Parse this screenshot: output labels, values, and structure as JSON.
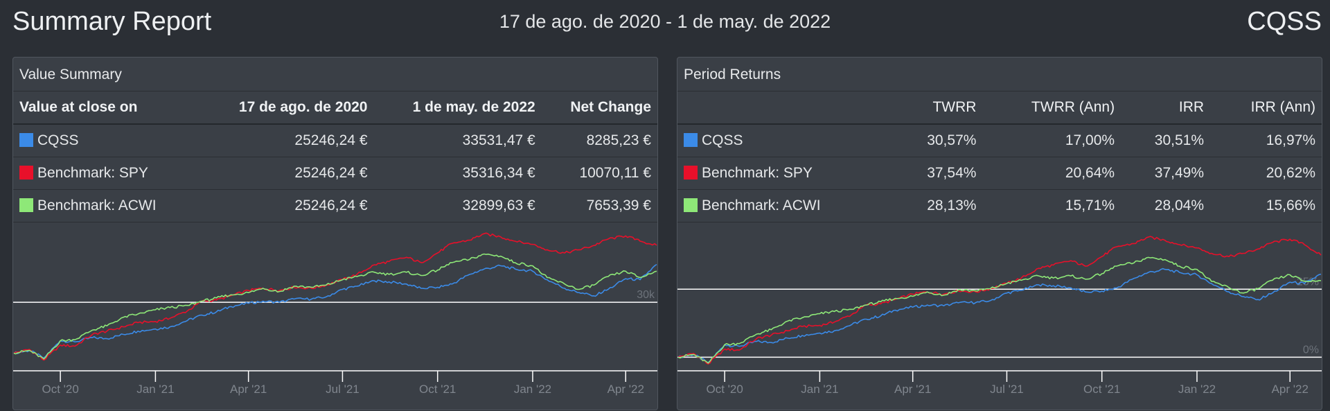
{
  "header": {
    "title": "Summary Report",
    "date_range": "17 de ago. de 2020 - 1 de may. de 2022",
    "portfolio": "CQSS"
  },
  "colors": {
    "cqss": "#3b8be8",
    "spy": "#e8102a",
    "acwi": "#8ee878"
  },
  "value_summary": {
    "title": "Value Summary",
    "columns": [
      "Value at close on",
      "17 de ago. de 2020",
      "1 de may. de 2022",
      "Net Change"
    ],
    "rows": [
      {
        "label": "CQSS",
        "start": "25246,24 €",
        "end": "33531,47 €",
        "change": "8285,23 €"
      },
      {
        "label": "Benchmark: SPY",
        "start": "25246,24 €",
        "end": "35316,34 €",
        "change": "10070,11 €"
      },
      {
        "label": "Benchmark: ACWI",
        "start": "25246,24 €",
        "end": "32899,63 €",
        "change": "7653,39 €"
      }
    ]
  },
  "period_returns": {
    "title": "Period Returns",
    "columns": [
      "",
      "TWRR",
      "TWRR (Ann)",
      "IRR",
      "IRR (Ann)"
    ],
    "rows": [
      {
        "label": "CQSS",
        "twrr": "30,57%",
        "twrr_ann": "17,00%",
        "irr": "30,51%",
        "irr_ann": "16,97%"
      },
      {
        "label": "Benchmark: SPY",
        "twrr": "37,54%",
        "twrr_ann": "20,64%",
        "irr": "37,49%",
        "irr_ann": "20,62%"
      },
      {
        "label": "Benchmark: ACWI",
        "twrr": "28,13%",
        "twrr_ann": "15,71%",
        "irr": "28,04%",
        "irr_ann": "15,66%"
      }
    ]
  },
  "chart_data": [
    {
      "type": "line",
      "xlabels": [
        "Oct '20",
        "Jan '21",
        "Apr '21",
        "Jul '21",
        "Oct '21",
        "Jan '22",
        "Apr '22"
      ],
      "y_tick_label": "30k",
      "y_tick_value": 30000,
      "ylim": [
        23600,
        36800
      ],
      "x": [
        "2020-08-17",
        "2020-09-01",
        "2020-09-15",
        "2020-10-01",
        "2020-10-15",
        "2020-11-01",
        "2020-11-15",
        "2020-12-01",
        "2020-12-15",
        "2021-01-01",
        "2021-01-15",
        "2021-02-01",
        "2021-02-15",
        "2021-03-01",
        "2021-03-15",
        "2021-04-01",
        "2021-04-15",
        "2021-05-01",
        "2021-05-15",
        "2021-06-01",
        "2021-06-15",
        "2021-07-01",
        "2021-07-15",
        "2021-08-01",
        "2021-08-15",
        "2021-09-01",
        "2021-09-15",
        "2021-10-01",
        "2021-10-15",
        "2021-11-01",
        "2021-11-15",
        "2021-12-01",
        "2021-12-15",
        "2022-01-01",
        "2022-01-15",
        "2022-02-01",
        "2022-02-15",
        "2022-03-01",
        "2022-03-15",
        "2022-04-01",
        "2022-04-15",
        "2022-05-01"
      ],
      "series": [
        {
          "name": "CQSS",
          "values": [
            25246,
            25500,
            24800,
            26400,
            26300,
            26700,
            26600,
            27000,
            27300,
            27500,
            27700,
            28300,
            28800,
            29100,
            29600,
            29900,
            30100,
            30000,
            30300,
            30300,
            30500,
            31200,
            31500,
            32000,
            31900,
            31700,
            31300,
            31400,
            31700,
            32600,
            33100,
            33400,
            33100,
            32900,
            32100,
            31300,
            30900,
            30600,
            31200,
            32200,
            32100,
            33531
          ]
        },
        {
          "name": "Benchmark: SPY",
          "values": [
            25246,
            25600,
            24600,
            26000,
            25900,
            27000,
            27300,
            27700,
            28100,
            28200,
            28500,
            29200,
            30100,
            30200,
            30600,
            31100,
            31300,
            31100,
            31400,
            31300,
            31600,
            32100,
            32600,
            33500,
            33800,
            34200,
            33700,
            34600,
            35500,
            35800,
            36400,
            36100,
            35700,
            35400,
            34900,
            34600,
            34900,
            35300,
            35900,
            36200,
            35700,
            35316
          ]
        },
        {
          "name": "Benchmark: ACWI",
          "values": [
            25246,
            25500,
            24700,
            26400,
            26500,
            27400,
            27800,
            28600,
            28900,
            29300,
            29500,
            29700,
            30100,
            30400,
            30700,
            30900,
            31300,
            31000,
            31500,
            31400,
            31600,
            32100,
            32400,
            32800,
            32600,
            32800,
            32500,
            33000,
            33700,
            34000,
            34500,
            34300,
            33700,
            33400,
            32300,
            31700,
            31200,
            31600,
            32400,
            32900,
            32300,
            32899
          ]
        }
      ]
    },
    {
      "type": "line",
      "xlabels": [
        "Oct '20",
        "Jan '21",
        "Apr '21",
        "Jul '21",
        "Oct '21",
        "Jan '22",
        "Apr '22"
      ],
      "y_ticks": [
        {
          "label": "0%",
          "value": 0
        },
        {
          "label": "25%",
          "value": 25
        }
      ],
      "ylim": [
        -5,
        47
      ],
      "x": [
        "2020-08-17",
        "2020-09-01",
        "2020-09-15",
        "2020-10-01",
        "2020-10-15",
        "2020-11-01",
        "2020-11-15",
        "2020-12-01",
        "2020-12-15",
        "2021-01-01",
        "2021-01-15",
        "2021-02-01",
        "2021-02-15",
        "2021-03-01",
        "2021-03-15",
        "2021-04-01",
        "2021-04-15",
        "2021-05-01",
        "2021-05-15",
        "2021-06-01",
        "2021-06-15",
        "2021-07-01",
        "2021-07-15",
        "2021-08-01",
        "2021-08-15",
        "2021-09-01",
        "2021-09-15",
        "2021-10-01",
        "2021-10-15",
        "2021-11-01",
        "2021-11-15",
        "2021-12-01",
        "2021-12-15",
        "2022-01-01",
        "2022-01-15",
        "2022-02-01",
        "2022-02-15",
        "2022-03-01",
        "2022-03-15",
        "2022-04-01",
        "2022-04-15",
        "2022-05-01"
      ],
      "series": [
        {
          "name": "CQSS",
          "values": [
            0,
            1,
            -2,
            4.5,
            4,
            5.8,
            5.4,
            7,
            8,
            8.9,
            9.7,
            12,
            14,
            15.2,
            17.3,
            18.4,
            19.2,
            18.9,
            20,
            20.1,
            20.8,
            23.6,
            24.6,
            26.6,
            26.3,
            25.5,
            24,
            24.3,
            25.4,
            29,
            31.2,
            32.3,
            31.2,
            30.3,
            27.1,
            24,
            22.3,
            21.2,
            23.6,
            27.6,
            27.1,
            30.57
          ]
        },
        {
          "name": "Benchmark: SPY",
          "values": [
            0,
            1.4,
            -2.5,
            3,
            2.6,
            6.9,
            8.1,
            9.7,
            11.3,
            11.7,
            12.9,
            15.7,
            19.2,
            19.6,
            21.2,
            23.2,
            24,
            23.2,
            24.4,
            24,
            25.2,
            27.1,
            29.1,
            32.7,
            33.9,
            35.5,
            33.5,
            37,
            40.6,
            41.8,
            44.2,
            43,
            41.4,
            40.2,
            38.2,
            37,
            38.2,
            39.8,
            42.2,
            43.4,
            41.4,
            37.54
          ]
        },
        {
          "name": "Benchmark: ACWI",
          "values": [
            0,
            1,
            -2.2,
            4.6,
            5,
            8.5,
            10.1,
            13.3,
            14.5,
            16,
            16.8,
            17.6,
            19.2,
            20.4,
            21.6,
            22.4,
            24,
            22.8,
            24.8,
            24.4,
            25.2,
            27.1,
            28.3,
            29.9,
            29.1,
            29.9,
            28.7,
            30.7,
            33.5,
            34.7,
            36.7,
            35.9,
            33.5,
            32.3,
            27.9,
            25.6,
            23.6,
            25.2,
            28.3,
            30.3,
            27.9,
            28.13
          ]
        }
      ]
    }
  ]
}
